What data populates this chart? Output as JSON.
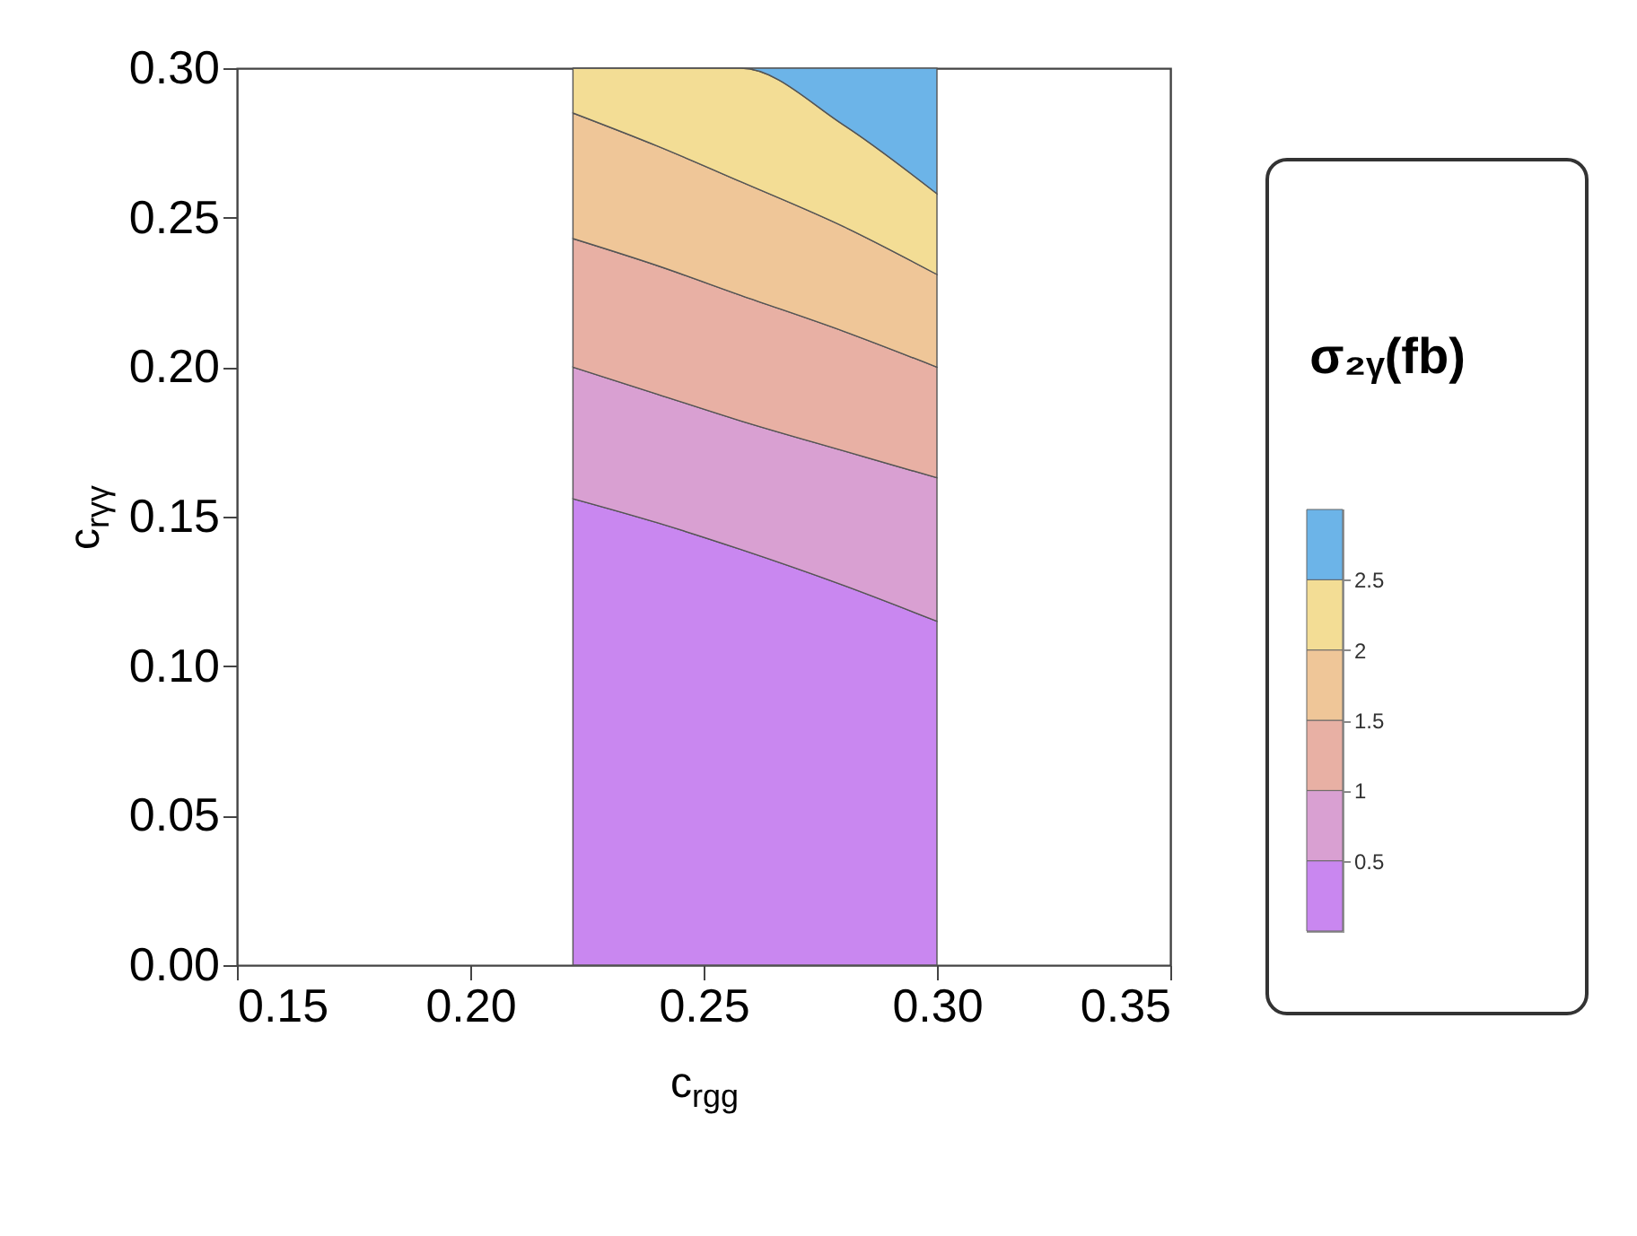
{
  "chart_data": {
    "type": "area",
    "stacked": true,
    "xlabel": "c$_{rgg}$",
    "ylabel": "c$_{rγγ}$",
    "clabel": "σ₂ᵧ(fb)",
    "x": [
      0.222,
      0.24,
      0.258,
      0.28,
      0.3
    ],
    "series": [
      {
        "color": "#c987f0",
        "values": [
          0.156,
          0.148,
          0.139,
          0.127,
          0.115
        ]
      },
      {
        "color": "#d9a0d2",
        "values": [
          0.044,
          0.043,
          0.043,
          0.045,
          0.048
        ]
      },
      {
        "color": "#e8b0a4",
        "values": [
          0.043,
          0.043,
          0.042,
          0.04,
          0.037
        ]
      },
      {
        "color": "#efc698",
        "values": [
          0.042,
          0.04,
          0.038,
          0.035,
          0.031
        ]
      },
      {
        "color": "#f3dd95",
        "values": [
          0.015,
          0.026,
          0.038,
          0.034,
          0.027
        ]
      },
      {
        "color": "#6cb4e8",
        "values": [
          0,
          0,
          0,
          0.019,
          0.042
        ]
      }
    ],
    "xlim": [
      0.15,
      0.35
    ],
    "xticks": [
      {
        "value": 0.15,
        "label": "0.15"
      },
      {
        "value": 0.2,
        "label": "0.20"
      },
      {
        "value": 0.25,
        "label": "0.25"
      },
      {
        "value": 0.3,
        "label": "0.30"
      },
      {
        "value": 0.35,
        "label": "0.35"
      }
    ],
    "ylim": [
      0,
      0.3
    ],
    "yticks": [
      {
        "value": 0,
        "label": "0.00"
      },
      {
        "value": 0.05,
        "label": "0.05"
      },
      {
        "value": 0.1,
        "label": "0.10"
      },
      {
        "value": 0.15,
        "label": "0.15"
      },
      {
        "value": 0.2,
        "label": "0.20"
      },
      {
        "value": 0.25,
        "label": "0.25"
      },
      {
        "value": 0.3,
        "label": "0.30"
      }
    ],
    "clim": [
      0,
      3
    ],
    "cticks": [
      0.5,
      1,
      1.5,
      2,
      2.5
    ]
  }
}
